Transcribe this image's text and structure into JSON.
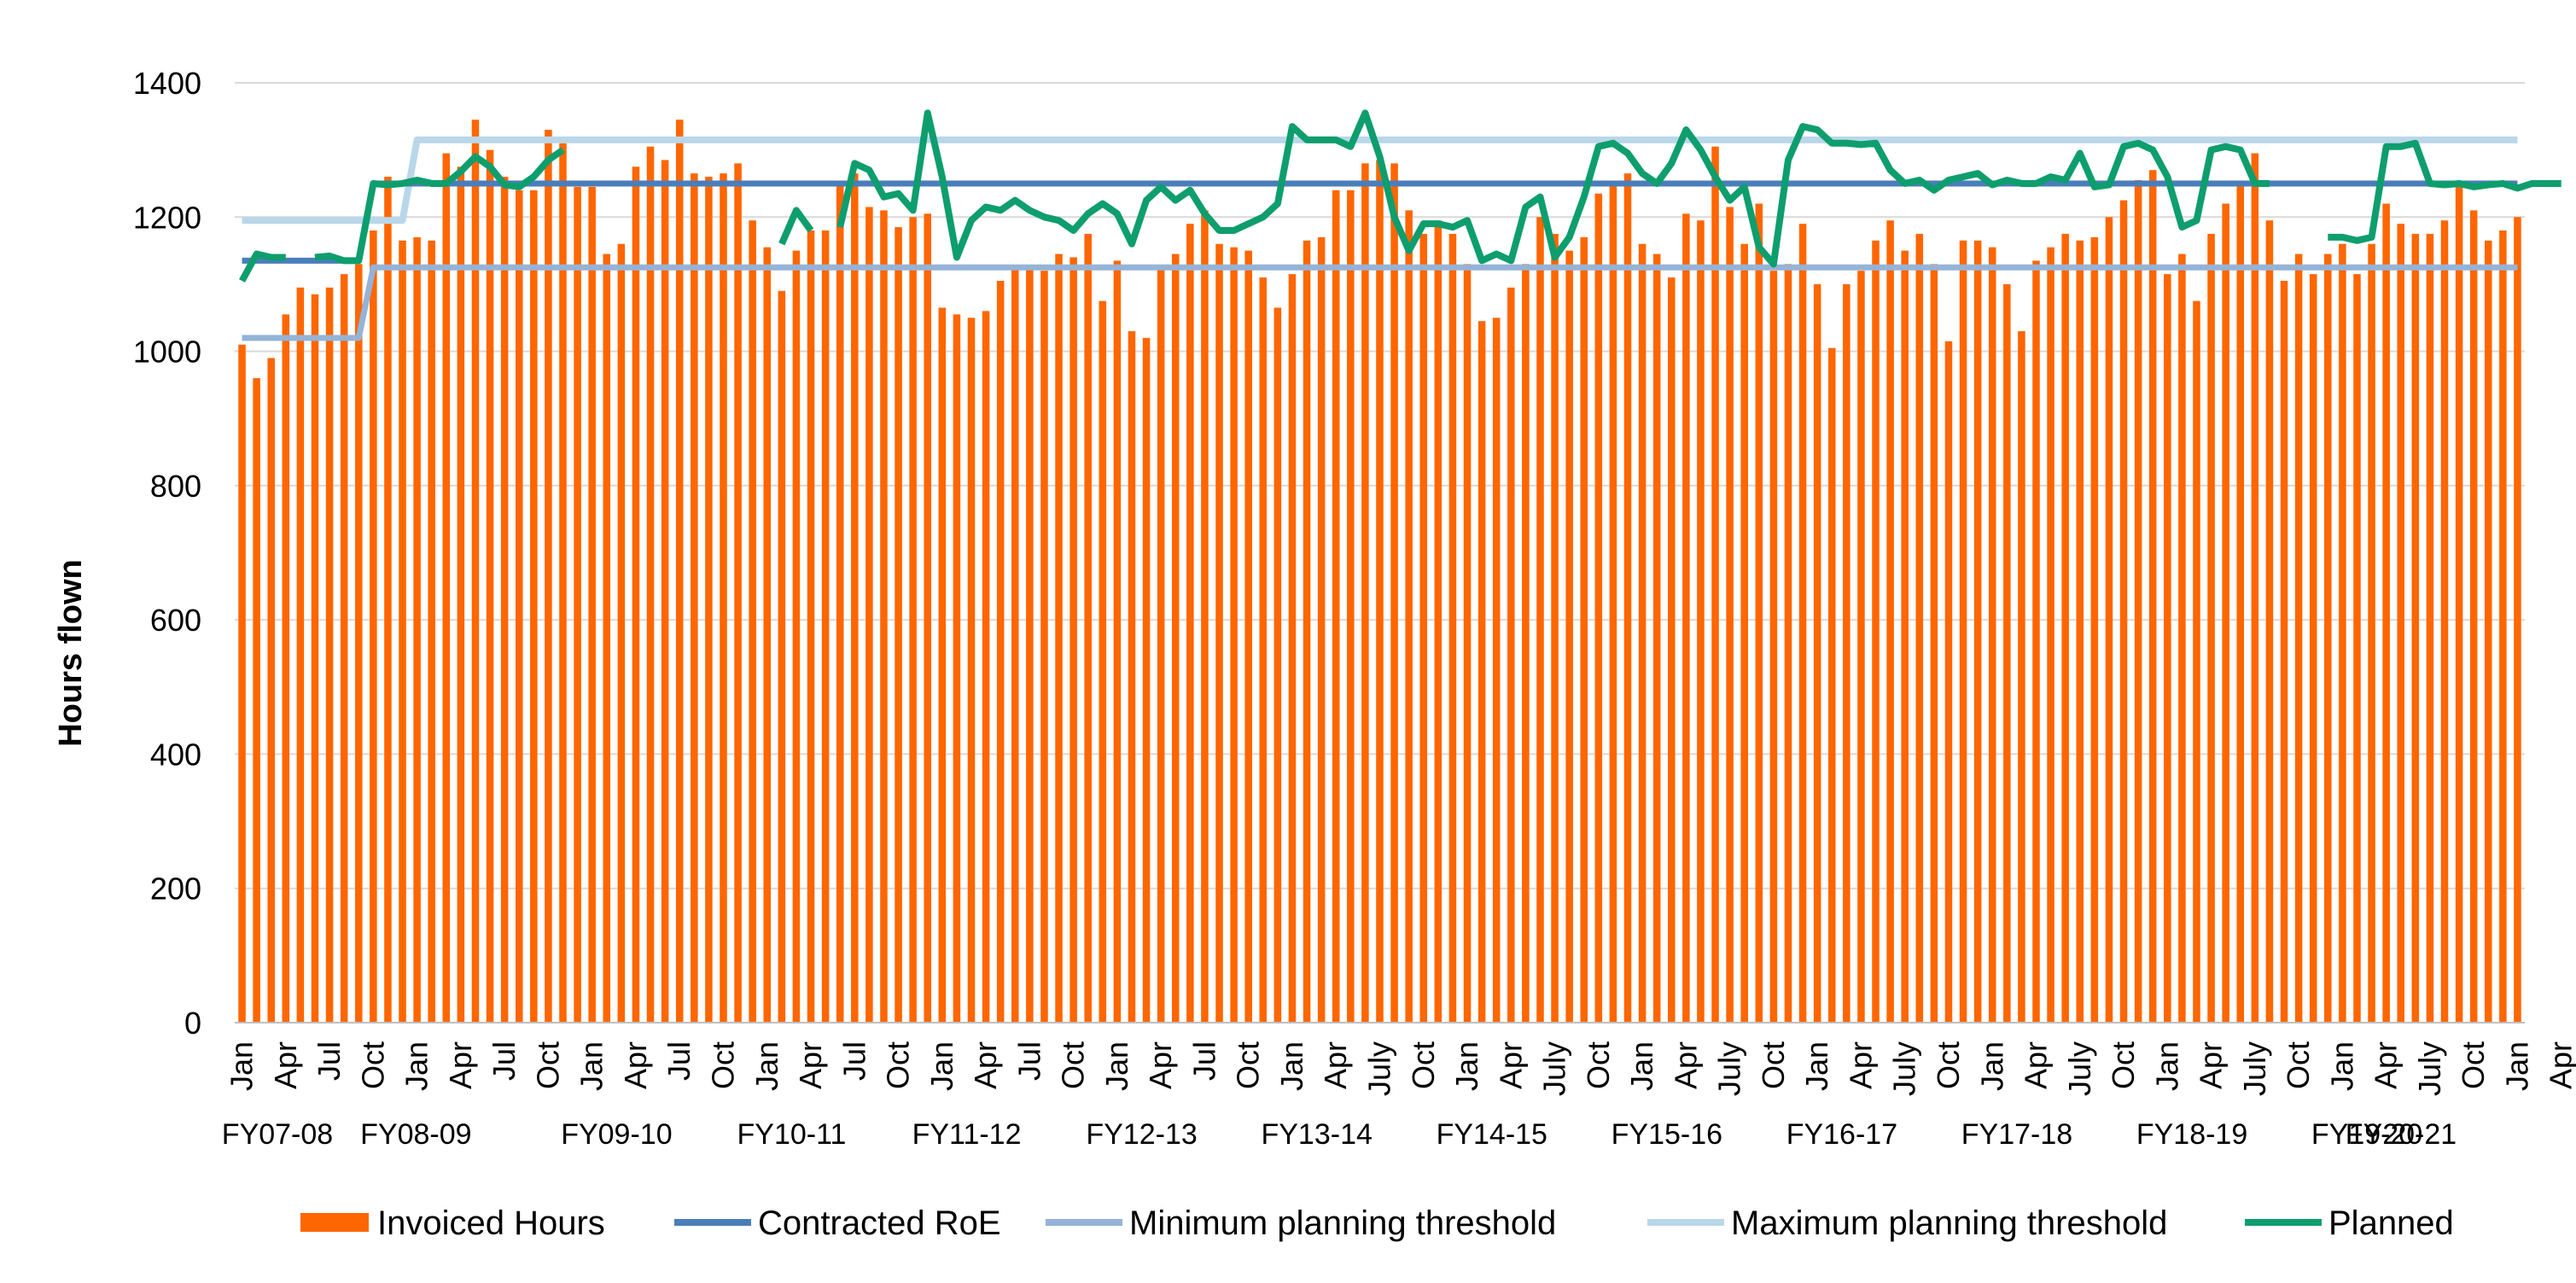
{
  "chart_data": {
    "type": "bar",
    "title": "",
    "ylabel": "Hours flown",
    "ylim": [
      0,
      1400
    ],
    "yticks": [
      0,
      200,
      400,
      600,
      800,
      1000,
      1200,
      1400
    ],
    "grid": "horizontal",
    "legend_position": "bottom",
    "month_tick_labels": [
      "Jan",
      "Apr",
      "Jul",
      "Oct",
      "Jan",
      "Apr",
      "Jul",
      "Oct",
      "Jan",
      "Apr",
      "Jul",
      "Oct",
      "Jan",
      "Apr",
      "Jul",
      "Oct",
      "Jan",
      "Apr",
      "Jul",
      "Oct",
      "Jan",
      "Apr",
      "Jul",
      "Oct",
      "Jan",
      "Apr",
      "July",
      "Oct",
      "Jan",
      "Apr",
      "July",
      "Oct",
      "Jan",
      "Apr",
      "July",
      "Oct",
      "Jan",
      "Apr",
      "July",
      "Oct",
      "Jan",
      "Apr",
      "July",
      "Oct",
      "Jan",
      "Apr",
      "July",
      "Oct",
      "Jan",
      "Apr",
      "July",
      "Oct",
      "Jan",
      "Apr",
      "July",
      "Oct"
    ],
    "fy_labels": [
      "FY07-08",
      "FY08-09",
      "FY09-10",
      "FY10-11",
      "FY11-12",
      "FY12-13",
      "FY13-14",
      "FY14-15",
      "FY15-16",
      "FY16-17",
      "FY17-18",
      "FY18-19",
      "FY19-20",
      "FY20-21"
    ],
    "series": [
      {
        "name": "Invoiced Hours",
        "type": "bar",
        "color": "#FF6600",
        "values": [
          1010,
          960,
          990,
          1055,
          1095,
          1085,
          1095,
          1115,
          1130,
          1180,
          1260,
          1165,
          1170,
          1165,
          1295,
          1275,
          1345,
          1300,
          1260,
          1240,
          1240,
          1330,
          1310,
          1245,
          1245,
          1145,
          1160,
          1275,
          1305,
          1285,
          1345,
          1265,
          1260,
          1265,
          1280,
          1195,
          1155,
          1090,
          1150,
          1180,
          1180,
          1250,
          1265,
          1215,
          1210,
          1185,
          1200,
          1205,
          1065,
          1055,
          1050,
          1060,
          1105,
          1125,
          1125,
          1120,
          1145,
          1140,
          1175,
          1075,
          1135,
          1030,
          1020,
          1125,
          1145,
          1190,
          1210,
          1160,
          1155,
          1150,
          1110,
          1065,
          1115,
          1165,
          1170,
          1240,
          1240,
          1280,
          1285,
          1280,
          1210,
          1175,
          1195,
          1175,
          1130,
          1045,
          1050,
          1095,
          1130,
          1200,
          1175,
          1150,
          1170,
          1235,
          1250,
          1265,
          1160,
          1145,
          1110,
          1205,
          1195,
          1305,
          1215,
          1160,
          1220,
          1120,
          1130,
          1190,
          1100,
          1005,
          1100,
          1120,
          1165,
          1195,
          1150,
          1175,
          1130,
          1015,
          1165,
          1165,
          1155,
          1100,
          1030,
          1135,
          1155,
          1175,
          1165,
          1170,
          1200,
          1225,
          1255,
          1270,
          1115,
          1145,
          1075,
          1175,
          1220,
          1250,
          1295,
          1195,
          1105,
          1145,
          1115,
          1145,
          1160,
          1115,
          1160,
          1220,
          1190,
          1175,
          1175,
          1195,
          1245,
          1210,
          1165,
          1180,
          1200
        ]
      },
      {
        "name": "Contracted RoE",
        "type": "line",
        "color": "#4A7EBB",
        "values": [
          1135,
          1135,
          1135,
          1135,
          1135,
          1135,
          1135,
          1135,
          1135,
          1250,
          1250,
          1250,
          1250,
          1250,
          1250,
          1250,
          1250,
          1250,
          1250,
          1250,
          1250,
          1250,
          1250,
          1250,
          1250,
          1250,
          1250,
          1250,
          1250,
          1250,
          1250,
          1250,
          1250,
          1250,
          1250,
          1250,
          1250,
          1250,
          1250,
          1250,
          1250,
          1250,
          1250,
          1250,
          1250,
          1250,
          1250,
          1250,
          1250,
          1250,
          1250,
          1250,
          1250,
          1250,
          1250,
          1250,
          1250,
          1250,
          1250,
          1250,
          1250,
          1250,
          1250,
          1250,
          1250,
          1250,
          1250,
          1250,
          1250,
          1250,
          1250,
          1250,
          1250,
          1250,
          1250,
          1250,
          1250,
          1250,
          1250,
          1250,
          1250,
          1250,
          1250,
          1250,
          1250,
          1250,
          1250,
          1250,
          1250,
          1250,
          1250,
          1250,
          1250,
          1250,
          1250,
          1250,
          1250,
          1250,
          1250,
          1250,
          1250,
          1250,
          1250,
          1250,
          1250,
          1250,
          1250,
          1250,
          1250,
          1250,
          1250,
          1250,
          1250,
          1250,
          1250,
          1250,
          1250,
          1250,
          1250,
          1250,
          1250,
          1250,
          1250,
          1250,
          1250,
          1250,
          1250,
          1250,
          1250,
          1250,
          1250,
          1250,
          1250,
          1250,
          1250,
          1250,
          1250,
          1250,
          1250,
          1250,
          1250,
          1250,
          1250,
          1250,
          1250,
          1250,
          1250,
          1250,
          1250,
          1250,
          1250,
          1250,
          1250,
          1250,
          1250,
          1250,
          1250
        ]
      },
      {
        "name": "Minimum planning threshold",
        "type": "line",
        "color": "#95B3D7",
        "values": [
          1020,
          1020,
          1020,
          1020,
          1020,
          1020,
          1020,
          1020,
          1020,
          1125,
          1125,
          1125,
          1125,
          1125,
          1125,
          1125,
          1125,
          1125,
          1125,
          1125,
          1125,
          1125,
          1125,
          1125,
          1125,
          1125,
          1125,
          1125,
          1125,
          1125,
          1125,
          1125,
          1125,
          1125,
          1125,
          1125,
          1125,
          1125,
          1125,
          1125,
          1125,
          1125,
          1125,
          1125,
          1125,
          1125,
          1125,
          1125,
          1125,
          1125,
          1125,
          1125,
          1125,
          1125,
          1125,
          1125,
          1125,
          1125,
          1125,
          1125,
          1125,
          1125,
          1125,
          1125,
          1125,
          1125,
          1125,
          1125,
          1125,
          1125,
          1125,
          1125,
          1125,
          1125,
          1125,
          1125,
          1125,
          1125,
          1125,
          1125,
          1125,
          1125,
          1125,
          1125,
          1125,
          1125,
          1125,
          1125,
          1125,
          1125,
          1125,
          1125,
          1125,
          1125,
          1125,
          1125,
          1125,
          1125,
          1125,
          1125,
          1125,
          1125,
          1125,
          1125,
          1125,
          1125,
          1125,
          1125,
          1125,
          1125,
          1125,
          1125,
          1125,
          1125,
          1125,
          1125,
          1125,
          1125,
          1125,
          1125,
          1125,
          1125,
          1125,
          1125,
          1125,
          1125,
          1125,
          1125,
          1125,
          1125,
          1125,
          1125,
          1125,
          1125,
          1125,
          1125,
          1125,
          1125,
          1125,
          1125,
          1125,
          1125,
          1125,
          1125,
          1125,
          1125,
          1125,
          1125,
          1125,
          1125,
          1125,
          1125,
          1125,
          1125,
          1125,
          1125,
          1125
        ]
      },
      {
        "name": "Maximum planning threshold",
        "type": "line",
        "color": "#B9D7EA",
        "values": [
          1195,
          1195,
          1195,
          1195,
          1195,
          1195,
          1195,
          1195,
          1195,
          1195,
          1195,
          1195,
          1315,
          1315,
          1315,
          1315,
          1315,
          1315,
          1315,
          1315,
          1315,
          1315,
          1315,
          1315,
          1315,
          1315,
          1315,
          1315,
          1315,
          1315,
          1315,
          1315,
          1315,
          1315,
          1315,
          1315,
          1315,
          1315,
          1315,
          1315,
          1315,
          1315,
          1315,
          1315,
          1315,
          1315,
          1315,
          1315,
          1315,
          1315,
          1315,
          1315,
          1315,
          1315,
          1315,
          1315,
          1315,
          1315,
          1315,
          1315,
          1315,
          1315,
          1315,
          1315,
          1315,
          1315,
          1315,
          1315,
          1315,
          1315,
          1315,
          1315,
          1315,
          1315,
          1315,
          1315,
          1315,
          1315,
          1315,
          1315,
          1315,
          1315,
          1315,
          1315,
          1315,
          1315,
          1315,
          1315,
          1315,
          1315,
          1315,
          1315,
          1315,
          1315,
          1315,
          1315,
          1315,
          1315,
          1315,
          1315,
          1315,
          1315,
          1315,
          1315,
          1315,
          1315,
          1315,
          1315,
          1315,
          1315,
          1315,
          1315,
          1315,
          1315,
          1315,
          1315,
          1315,
          1315,
          1315,
          1315,
          1315,
          1315,
          1315,
          1315,
          1315,
          1315,
          1315,
          1315,
          1315,
          1315,
          1315,
          1315,
          1315,
          1315,
          1315,
          1315,
          1315,
          1315,
          1315,
          1315,
          1315,
          1315,
          1315,
          1315,
          1315,
          1315,
          1315,
          1315,
          1315,
          1315,
          1315,
          1315,
          1315,
          1315,
          1315,
          1315,
          1315
        ]
      },
      {
        "name": "Planned",
        "type": "line",
        "color": "#0E9E6E",
        "values": [
          1105,
          1145,
          1140,
          1140,
          null,
          1140,
          1142,
          1135,
          1135,
          1250,
          1248,
          1250,
          1255,
          1250,
          1250,
          1268,
          1290,
          1275,
          1248,
          1245,
          1260,
          1285,
          1300,
          null,
          null,
          null,
          null,
          null,
          null,
          null,
          null,
          null,
          null,
          null,
          null,
          null,
          null,
          1160,
          1210,
          1180,
          null,
          1185,
          1280,
          1270,
          1230,
          1235,
          1210,
          1355,
          1260,
          1140,
          1195,
          1215,
          1210,
          1225,
          1210,
          1200,
          1195,
          1180,
          1205,
          1220,
          1205,
          1160,
          1225,
          1245,
          1225,
          1240,
          1205,
          1180,
          1180,
          1190,
          1200,
          1220,
          1335,
          1315,
          1315,
          1315,
          1305,
          1355,
          1290,
          1200,
          1150,
          1190,
          1190,
          1185,
          1195,
          1135,
          1145,
          1135,
          1215,
          1230,
          1140,
          1170,
          1230,
          1305,
          1310,
          1295,
          1265,
          1250,
          1280,
          1330,
          1300,
          1260,
          1225,
          1245,
          1155,
          1130,
          1285,
          1335,
          1330,
          1310,
          1310,
          1308,
          1310,
          1270,
          1250,
          1255,
          1240,
          1255,
          1260,
          1265,
          1248,
          1255,
          1250,
          1250,
          1260,
          1255,
          1295,
          1245,
          1248,
          1305,
          1310,
          1300,
          1260,
          1185,
          1195,
          1300,
          1305,
          1300,
          1250,
          1250,
          null,
          null,
          null,
          1170,
          1170,
          1165,
          1170,
          1305,
          1305,
          1310,
          1250,
          1248,
          1250,
          1245,
          1248,
          1250,
          1243,
          1250,
          1250,
          1250
        ]
      }
    ]
  }
}
